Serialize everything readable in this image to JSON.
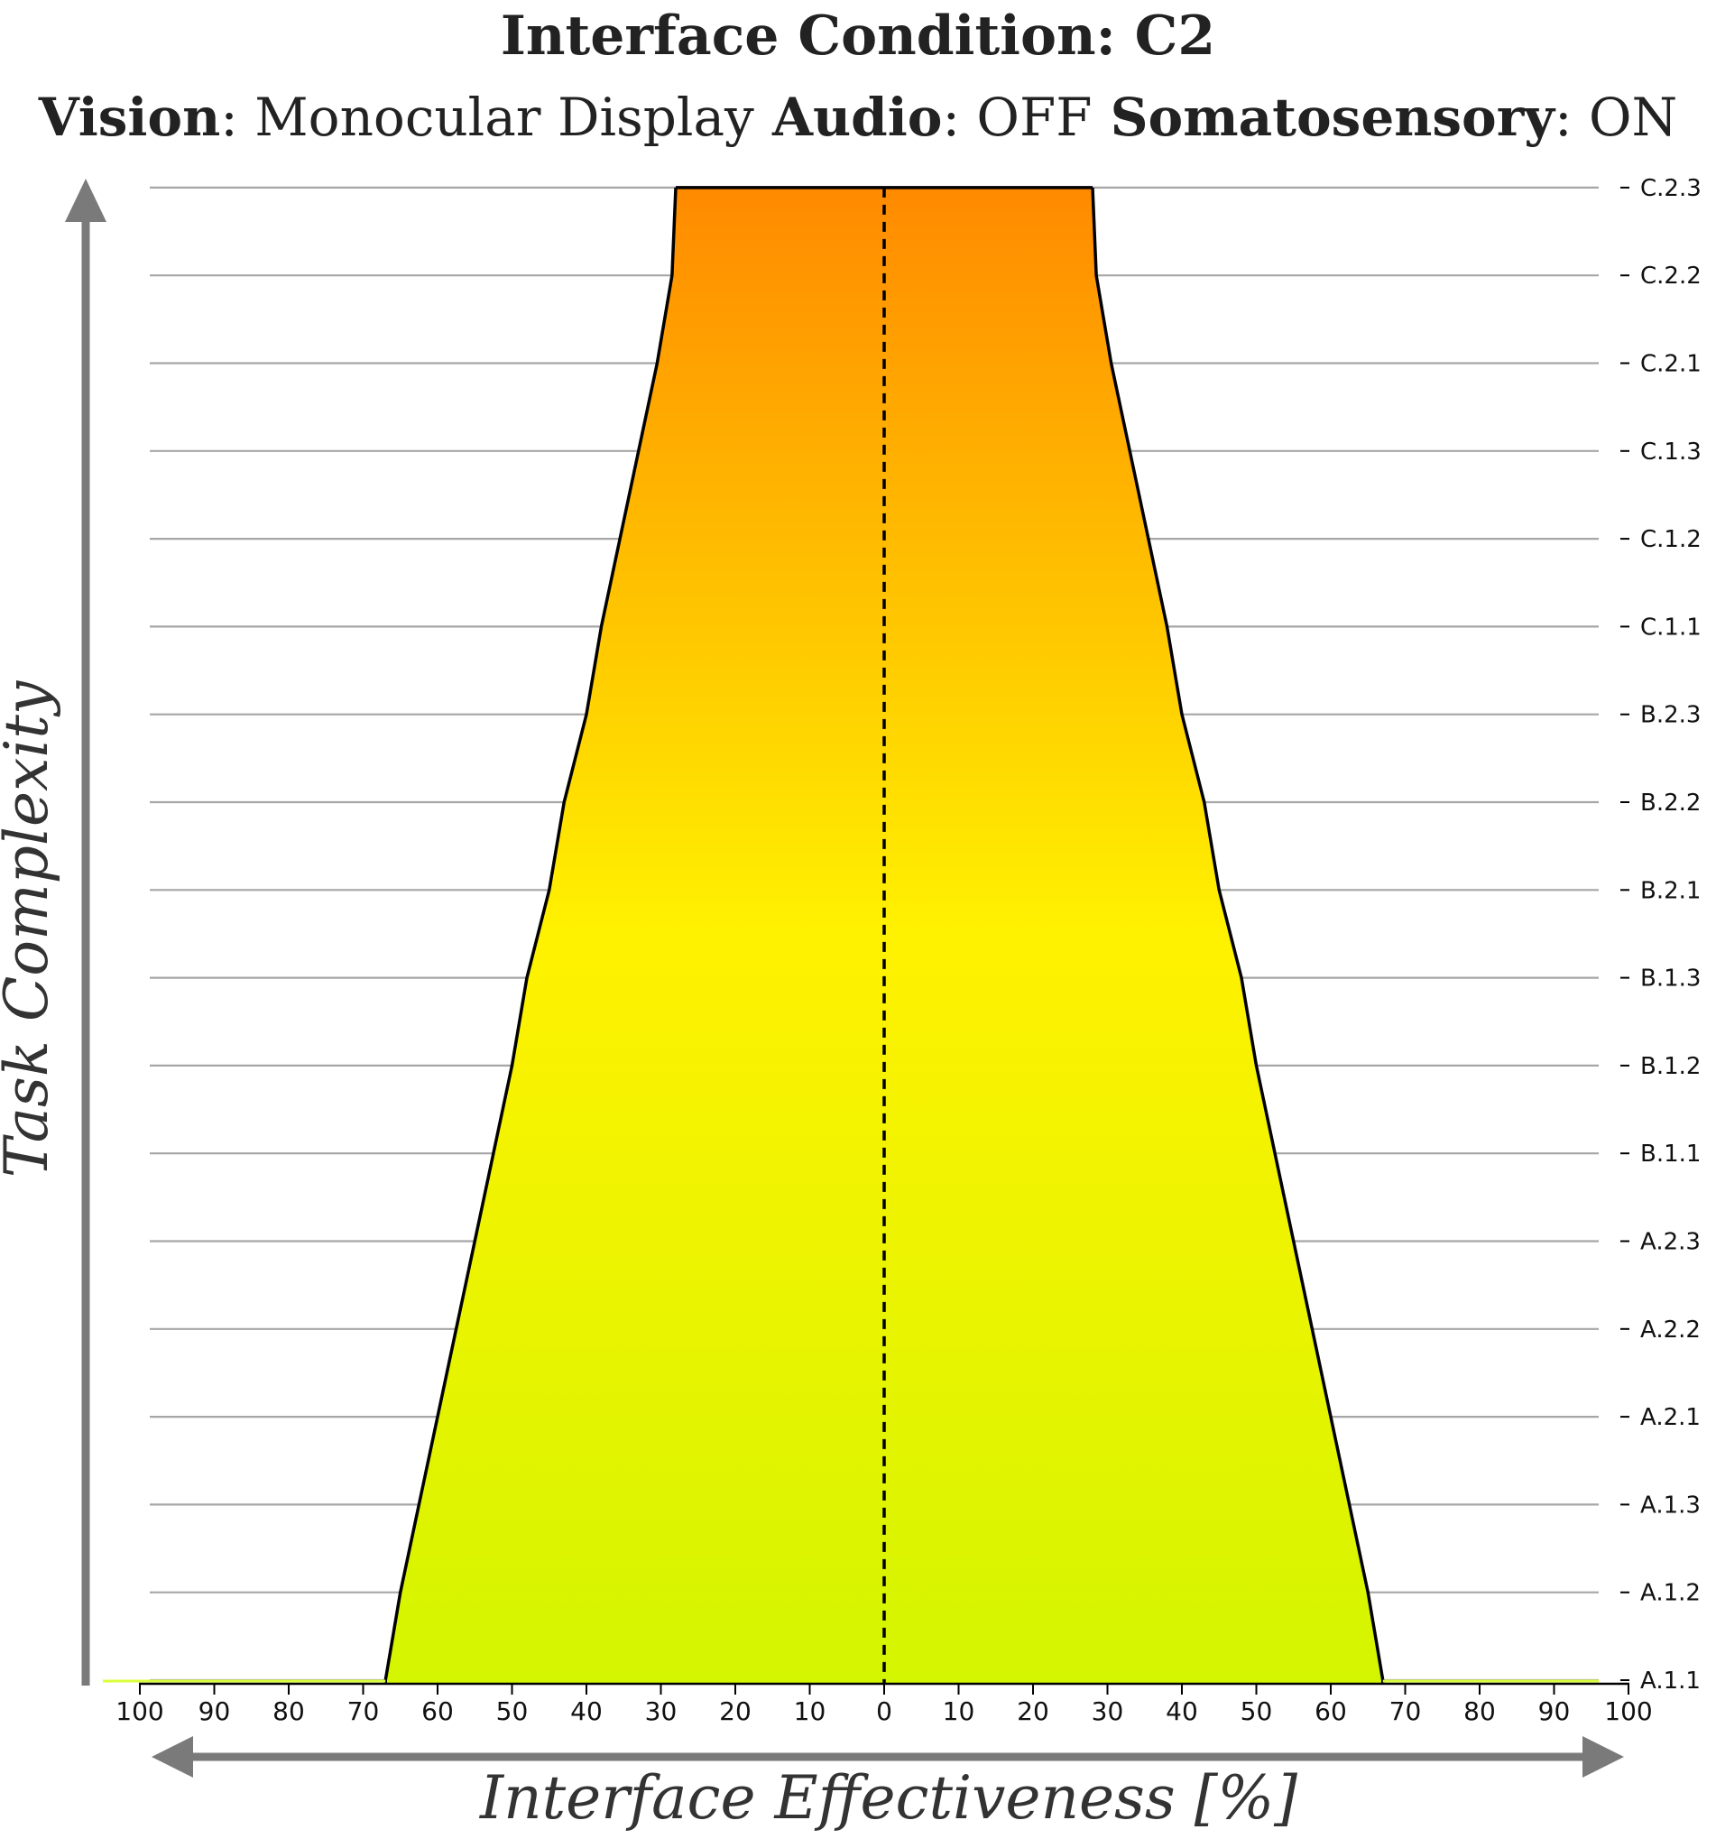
{
  "chart_data": {
    "type": "area",
    "title": "Interface Condition: C2",
    "subtitle": [
      {
        "label": "Vision",
        "value": "Monocular Display"
      },
      {
        "label": "Audio",
        "value": "OFF"
      },
      {
        "label": "Somatosensory",
        "value": "ON"
      }
    ],
    "xlabel": "Interface Effectiveness [%]",
    "ylabel": "Task Complexity",
    "x_ticks": [
      100,
      90,
      80,
      70,
      60,
      50,
      40,
      30,
      20,
      10,
      0,
      10,
      20,
      30,
      40,
      50,
      60,
      70,
      80,
      90,
      100
    ],
    "xlim": [
      -100,
      100
    ],
    "categories": [
      "A.1.1",
      "A.1.2",
      "A.1.3",
      "A.2.1",
      "A.2.2",
      "A.2.3",
      "B.1.1",
      "B.1.2",
      "B.1.3",
      "B.2.1",
      "B.2.2",
      "B.2.3",
      "C.1.1",
      "C.1.2",
      "C.1.3",
      "C.2.1",
      "C.2.2",
      "C.2.3"
    ],
    "effectiveness": [
      67,
      65,
      62.5,
      60,
      57.5,
      55,
      52.5,
      50,
      48,
      45,
      43,
      40,
      38,
      35.5,
      33,
      30.5,
      28.5,
      28
    ],
    "grid": true,
    "gradient_colors": {
      "bottom": "#d4f500",
      "middle": "#fff200",
      "top": "#ff8a00"
    },
    "colors": {
      "outline": "#000000",
      "grid": "#a6a6a6",
      "arrow": "#7a7a7a",
      "baseline_accent": "#d8ff3a"
    }
  }
}
